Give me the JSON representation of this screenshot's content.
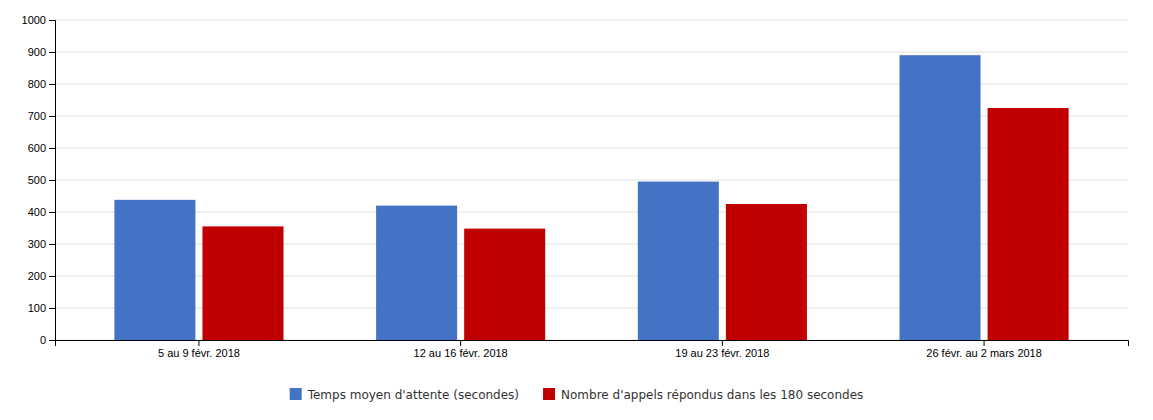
{
  "chart_data": {
    "type": "bar",
    "categories": [
      "5 au 9 févr. 2018",
      "12 au 16 févr. 2018",
      "19 au 23 févr. 2018",
      "26 févr. au 2 mars 2018"
    ],
    "series": [
      {
        "name": "Temps moyen d'attente (secondes)",
        "color": "#4472C4",
        "values": [
          438,
          420,
          495,
          890
        ]
      },
      {
        "name": "Nombre d'appels répondus dans les 180 secondes",
        "color": "#C00000",
        "values": [
          355,
          348,
          425,
          725
        ]
      }
    ],
    "ylim": [
      0,
      1000
    ],
    "yticks": [
      0,
      100,
      200,
      300,
      400,
      500,
      600,
      700,
      800,
      900,
      1000
    ],
    "grid": true,
    "legend": "bottom"
  }
}
